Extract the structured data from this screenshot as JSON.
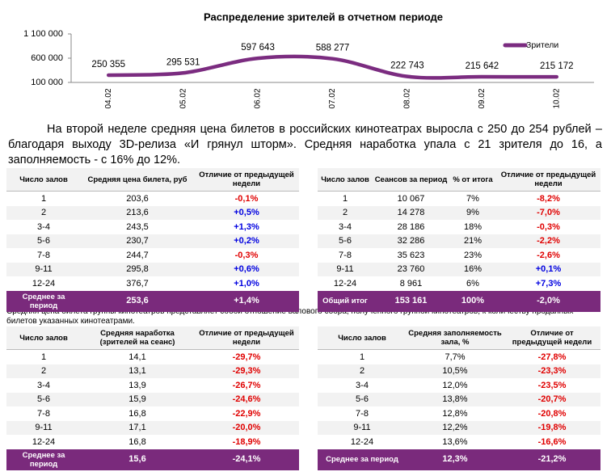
{
  "chart_data": {
    "type": "line",
    "title": "Распределение зрителей в отчетном периоде",
    "categories": [
      "04.02",
      "05.02",
      "06.02",
      "07.02",
      "08.02",
      "09.02",
      "10.02"
    ],
    "series": [
      {
        "name": "Зрители",
        "color": "#7b2c80",
        "values": [
          250355,
          295531,
          597643,
          588277,
          222743,
          215642,
          215172
        ],
        "value_labels": [
          "250 355",
          "295 531",
          "597 643",
          "588 277",
          "222 743",
          "215 642",
          "215 172"
        ]
      }
    ],
    "ylim": [
      100000,
      1100000
    ],
    "yticks": [
      {
        "value": 100000,
        "label": "100 000"
      },
      {
        "value": 600000,
        "label": "600 000"
      },
      {
        "value": 1100000,
        "label": "1 100 000"
      }
    ],
    "legend": "top-right",
    "grid": false
  },
  "paragraph": "На второй неделе средняя цена билетов в российских кинотеатрах выросла с 250 до 254 рублей – благодаря выходу 3D-релиза «И грянул шторм». Средняя наработка упала с 21 зрителя до 16, а заполняемость - с 16% до 12%.",
  "note": "Средняя цена билета группы кинотеатров представляет собой отношение валового сбора, полученного группой кинотеатров, к количеству проданных билетов указанных кинотеатрами.",
  "tables": [
    {
      "header": [
        "Число залов",
        "Средняя цена билета, руб",
        "Отличие от предыдущей недели"
      ],
      "rows": [
        [
          "1",
          "203,6",
          "-0,1%"
        ],
        [
          "2",
          "213,6",
          "+0,5%"
        ],
        [
          "3-4",
          "243,5",
          "+1,3%"
        ],
        [
          "5-6",
          "230,7",
          "+0,2%"
        ],
        [
          "7-8",
          "244,7",
          "-0,3%"
        ],
        [
          "9-11",
          "295,8",
          "+0,6%"
        ],
        [
          "12-24",
          "376,7",
          "+1,0%"
        ]
      ],
      "footer": [
        "Среднее за период",
        "253,6",
        "+1,4%"
      ]
    },
    {
      "header": [
        "Число залов",
        "Сеансов за период",
        "% от итога",
        "Отличие от предыдущей недели"
      ],
      "rows": [
        [
          "1",
          "10 067",
          "7%",
          "-8,2%"
        ],
        [
          "2",
          "14 278",
          "9%",
          "-7,0%"
        ],
        [
          "3-4",
          "28 186",
          "18%",
          "-0,3%"
        ],
        [
          "5-6",
          "32 286",
          "21%",
          "-2,2%"
        ],
        [
          "7-8",
          "35 623",
          "23%",
          "-2,6%"
        ],
        [
          "9-11",
          "23 760",
          "16%",
          "+0,1%"
        ],
        [
          "12-24",
          "8 961",
          "6%",
          "+7,3%"
        ]
      ],
      "footer": [
        "Общий итог",
        "153 161",
        "100%",
        "-2,0%"
      ]
    },
    {
      "header": [
        "Число залов",
        "Средняя наработка (зрителей на сеанс)",
        "Отличие от предыдущей недели"
      ],
      "rows": [
        [
          "1",
          "14,1",
          "-29,7%"
        ],
        [
          "2",
          "13,1",
          "-29,3%"
        ],
        [
          "3-4",
          "13,9",
          "-26,7%"
        ],
        [
          "5-6",
          "15,9",
          "-24,6%"
        ],
        [
          "7-8",
          "16,8",
          "-22,9%"
        ],
        [
          "9-11",
          "17,1",
          "-20,0%"
        ],
        [
          "12-24",
          "16,8",
          "-18,9%"
        ]
      ],
      "footer": [
        "Среднее за период",
        "15,6",
        "-24,1%"
      ]
    },
    {
      "header": [
        "Число залов",
        "Средняя заполняемость зала, %",
        "Отличие от предыдущей недели"
      ],
      "rows": [
        [
          "1",
          "7,7%",
          "-27,8%"
        ],
        [
          "2",
          "10,5%",
          "-23,3%"
        ],
        [
          "3-4",
          "12,0%",
          "-23,5%"
        ],
        [
          "5-6",
          "13,8%",
          "-20,7%"
        ],
        [
          "7-8",
          "12,8%",
          "-20,8%"
        ],
        [
          "9-11",
          "12,2%",
          "-19,8%"
        ],
        [
          "12-24",
          "13,6%",
          "-16,6%"
        ]
      ],
      "footer": [
        "Среднее за период",
        "12,3%",
        "-21,2%"
      ]
    }
  ]
}
